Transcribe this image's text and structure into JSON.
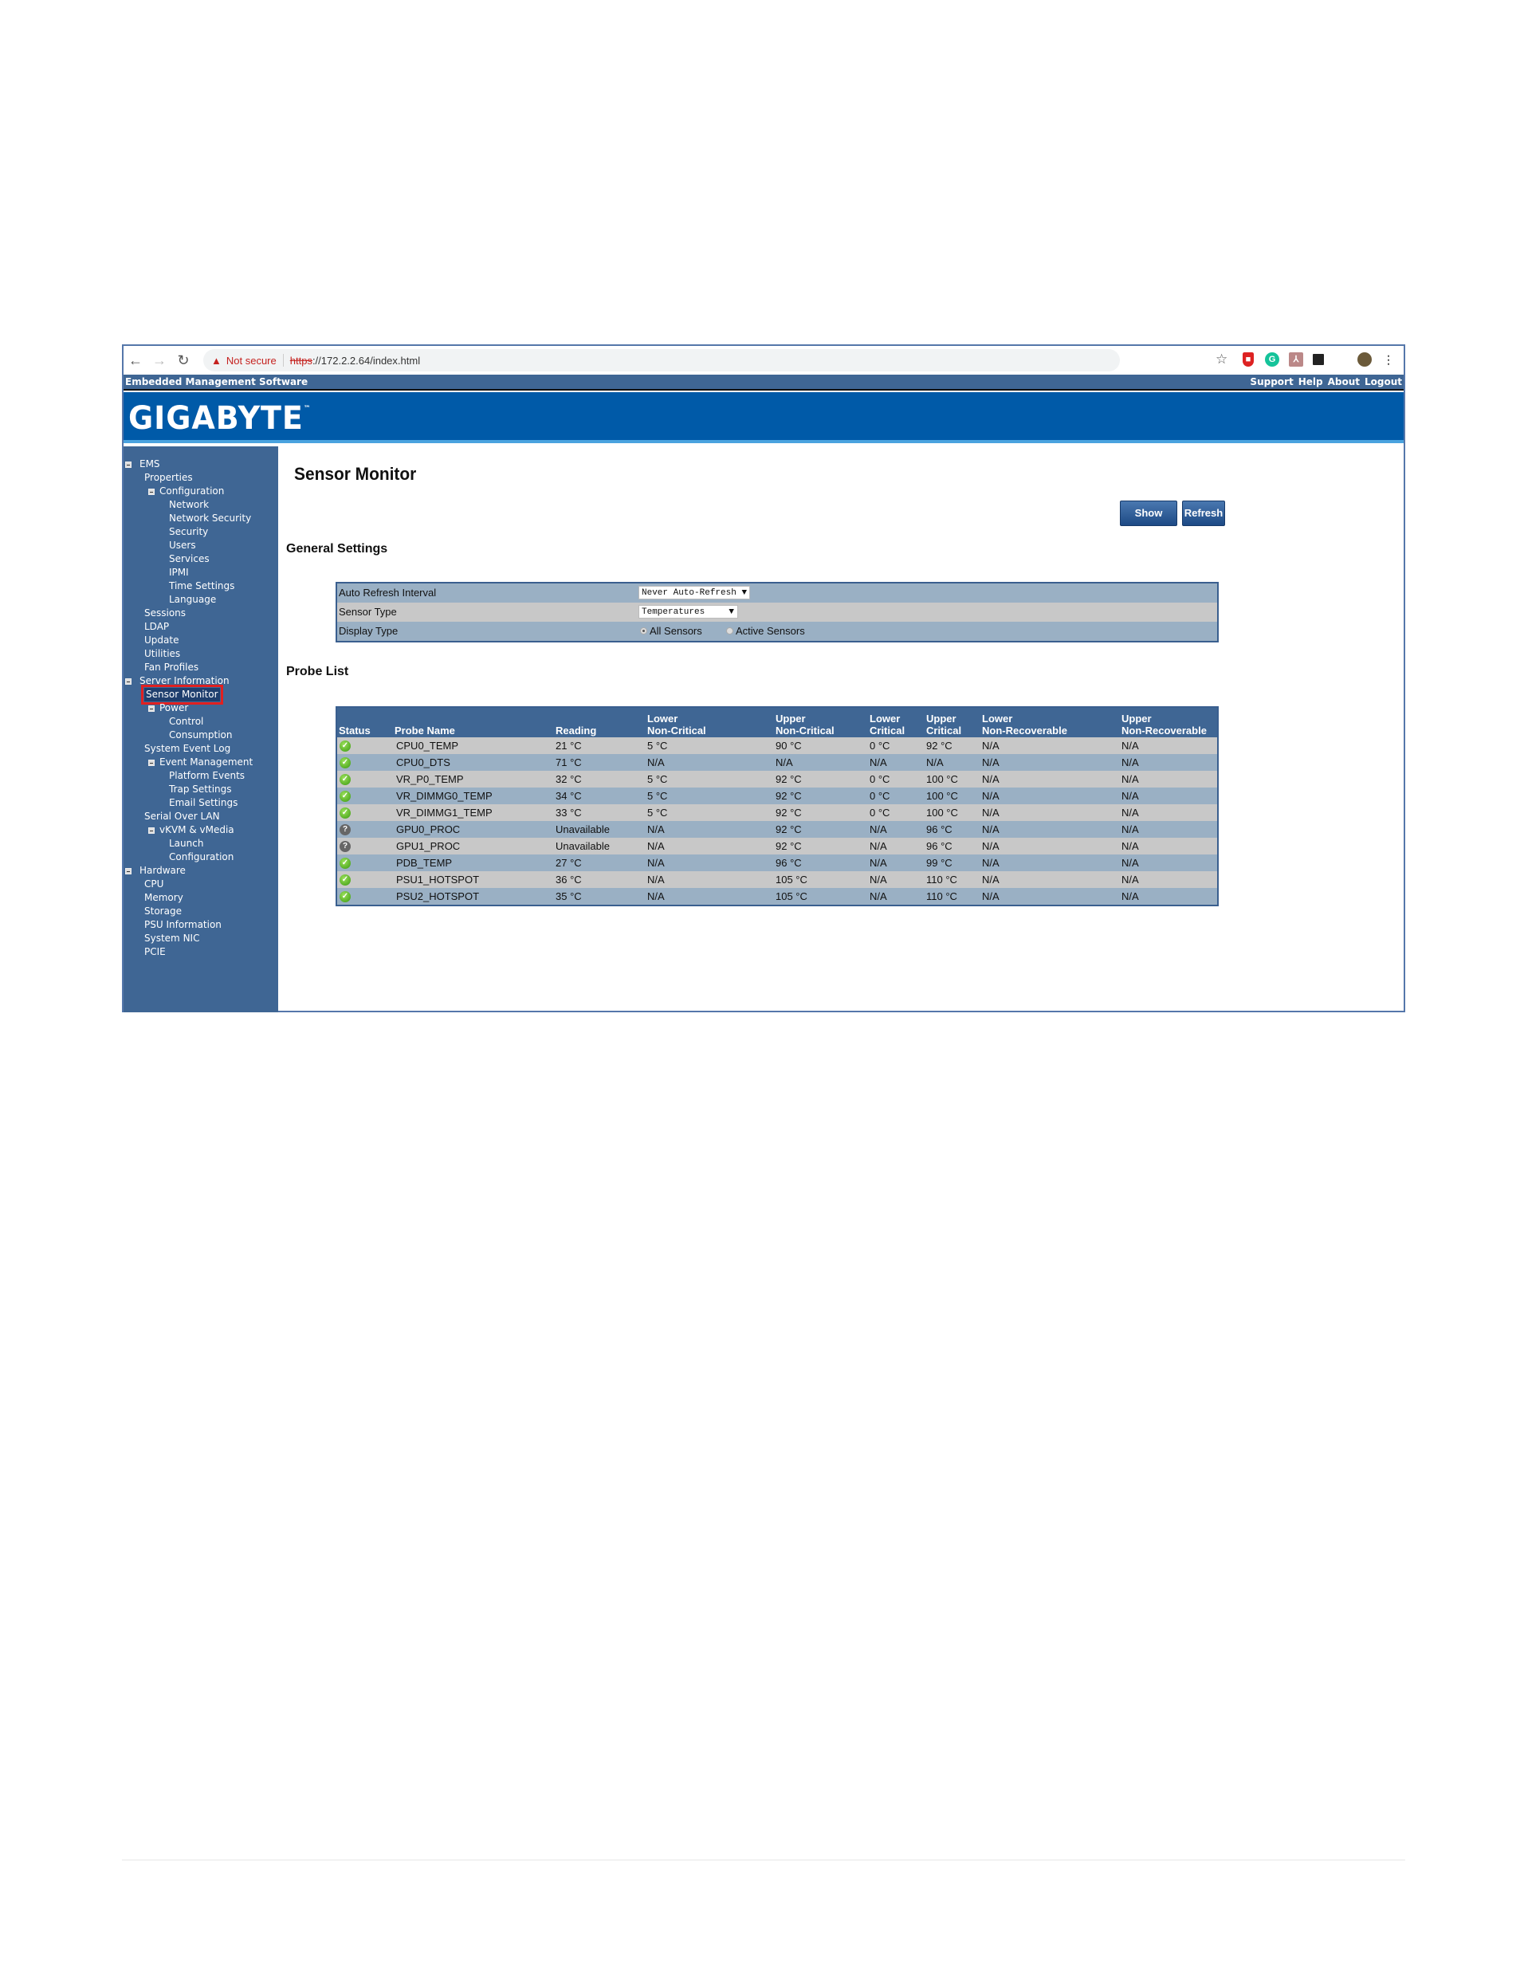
{
  "browser": {
    "not_secure": "Not secure",
    "url_scheme": "https",
    "url_rest": "://172.2.2.64/index.html",
    "icons": [
      "back-icon",
      "forward-icon",
      "reload-icon",
      "warning-icon",
      "star-icon",
      "shield-extension-icon",
      "grammarly-icon",
      "pdf-icon",
      "reader-icon",
      "profile-avatar",
      "menu-icon"
    ]
  },
  "header": {
    "app_title": "Embedded Management Software",
    "links": [
      "Support",
      "Help",
      "About",
      "Logout"
    ],
    "brand": "GIGABYTE",
    "tm": "™",
    "colors": {
      "bar": "#3f6694",
      "logo_bg": "#005aa8"
    }
  },
  "sidebar": {
    "items": [
      {
        "label": "EMS",
        "level": 0,
        "expander": true
      },
      {
        "label": "Properties",
        "level": 1
      },
      {
        "label": "Configuration",
        "level": 1,
        "expander": true
      },
      {
        "label": "Network",
        "level": 2
      },
      {
        "label": "Network Security",
        "level": 2
      },
      {
        "label": "Security",
        "level": 2
      },
      {
        "label": "Users",
        "level": 2
      },
      {
        "label": "Services",
        "level": 2
      },
      {
        "label": "IPMI",
        "level": 2
      },
      {
        "label": "Time Settings",
        "level": 2
      },
      {
        "label": "Language",
        "level": 2
      },
      {
        "label": "Sessions",
        "level": 1
      },
      {
        "label": "LDAP",
        "level": 1
      },
      {
        "label": "Update",
        "level": 1
      },
      {
        "label": "Utilities",
        "level": 1
      },
      {
        "label": "Fan Profiles",
        "level": 1
      },
      {
        "label": "Server Information",
        "level": 0,
        "expander": true
      },
      {
        "label": "Sensor Monitor",
        "level": 1,
        "selected": true
      },
      {
        "label": "Power",
        "level": 1,
        "expander": true
      },
      {
        "label": "Control",
        "level": 2
      },
      {
        "label": "Consumption",
        "level": 2
      },
      {
        "label": "System Event Log",
        "level": 1
      },
      {
        "label": "Event Management",
        "level": 1,
        "expander": true
      },
      {
        "label": "Platform Events",
        "level": 2
      },
      {
        "label": "Trap Settings",
        "level": 2
      },
      {
        "label": "Email Settings",
        "level": 2
      },
      {
        "label": "Serial Over LAN",
        "level": 1
      },
      {
        "label": "vKVM & vMedia",
        "level": 1,
        "expander": true
      },
      {
        "label": "Launch",
        "level": 2
      },
      {
        "label": "Configuration",
        "level": 2
      },
      {
        "label": "Hardware",
        "level": 0,
        "expander": true
      },
      {
        "label": "CPU",
        "level": 1
      },
      {
        "label": "Memory",
        "level": 1
      },
      {
        "label": "Storage",
        "level": 1
      },
      {
        "label": "PSU Information",
        "level": 1
      },
      {
        "label": "System NIC",
        "level": 1
      },
      {
        "label": "PCIE",
        "level": 1
      }
    ]
  },
  "main": {
    "title": "Sensor Monitor",
    "show_graph": "Show Graph",
    "refresh": "Refresh",
    "general_settings": {
      "heading": "General Settings",
      "auto_refresh_label": "Auto Refresh Interval",
      "auto_refresh_value": "Never Auto-Refresh",
      "sensor_type_label": "Sensor Type",
      "sensor_type_value": "Temperatures",
      "display_type_label": "Display Type",
      "display_all": "All Sensors",
      "display_active": "Active Sensors",
      "display_selected": "All Sensors"
    },
    "probe_list": {
      "heading": "Probe List",
      "columns": [
        [
          "",
          "Status"
        ],
        [
          "",
          "Probe Name"
        ],
        [
          "",
          "Reading"
        ],
        [
          "Lower",
          "Non-Critical"
        ],
        [
          "Upper",
          "Non-Critical"
        ],
        [
          "Lower",
          "Critical"
        ],
        [
          "Upper",
          "Critical"
        ],
        [
          "Lower",
          "Non-Recoverable"
        ],
        [
          "Upper",
          "Non-Recoverable"
        ]
      ],
      "rows": [
        {
          "status": "ok",
          "cells": [
            "CPU0_TEMP",
            "21 °C",
            "5 °C",
            "90 °C",
            "0 °C",
            "92 °C",
            "N/A",
            "N/A"
          ]
        },
        {
          "status": "ok",
          "cells": [
            "CPU0_DTS",
            "71 °C",
            "N/A",
            "N/A",
            "N/A",
            "N/A",
            "N/A",
            "N/A"
          ]
        },
        {
          "status": "ok",
          "cells": [
            "VR_P0_TEMP",
            "32 °C",
            "5 °C",
            "92 °C",
            "0 °C",
            "100 °C",
            "N/A",
            "N/A"
          ]
        },
        {
          "status": "ok",
          "cells": [
            "VR_DIMMG0_TEMP",
            "34 °C",
            "5 °C",
            "92 °C",
            "0 °C",
            "100 °C",
            "N/A",
            "N/A"
          ]
        },
        {
          "status": "ok",
          "cells": [
            "VR_DIMMG1_TEMP",
            "33 °C",
            "5 °C",
            "92 °C",
            "0 °C",
            "100 °C",
            "N/A",
            "N/A"
          ]
        },
        {
          "status": "unknown",
          "cells": [
            "GPU0_PROC",
            "Unavailable",
            "N/A",
            "92 °C",
            "N/A",
            "96 °C",
            "N/A",
            "N/A"
          ]
        },
        {
          "status": "unknown",
          "cells": [
            "GPU1_PROC",
            "Unavailable",
            "N/A",
            "92 °C",
            "N/A",
            "96 °C",
            "N/A",
            "N/A"
          ]
        },
        {
          "status": "ok",
          "cells": [
            "PDB_TEMP",
            "27 °C",
            "N/A",
            "96 °C",
            "N/A",
            "99 °C",
            "N/A",
            "N/A"
          ]
        },
        {
          "status": "ok",
          "cells": [
            "PSU1_HOTSPOT",
            "36 °C",
            "N/A",
            "105 °C",
            "N/A",
            "110 °C",
            "N/A",
            "N/A"
          ]
        },
        {
          "status": "ok",
          "cells": [
            "PSU2_HOTSPOT",
            "35 °C",
            "N/A",
            "105 °C",
            "N/A",
            "110 °C",
            "N/A",
            "N/A"
          ]
        }
      ]
    }
  }
}
